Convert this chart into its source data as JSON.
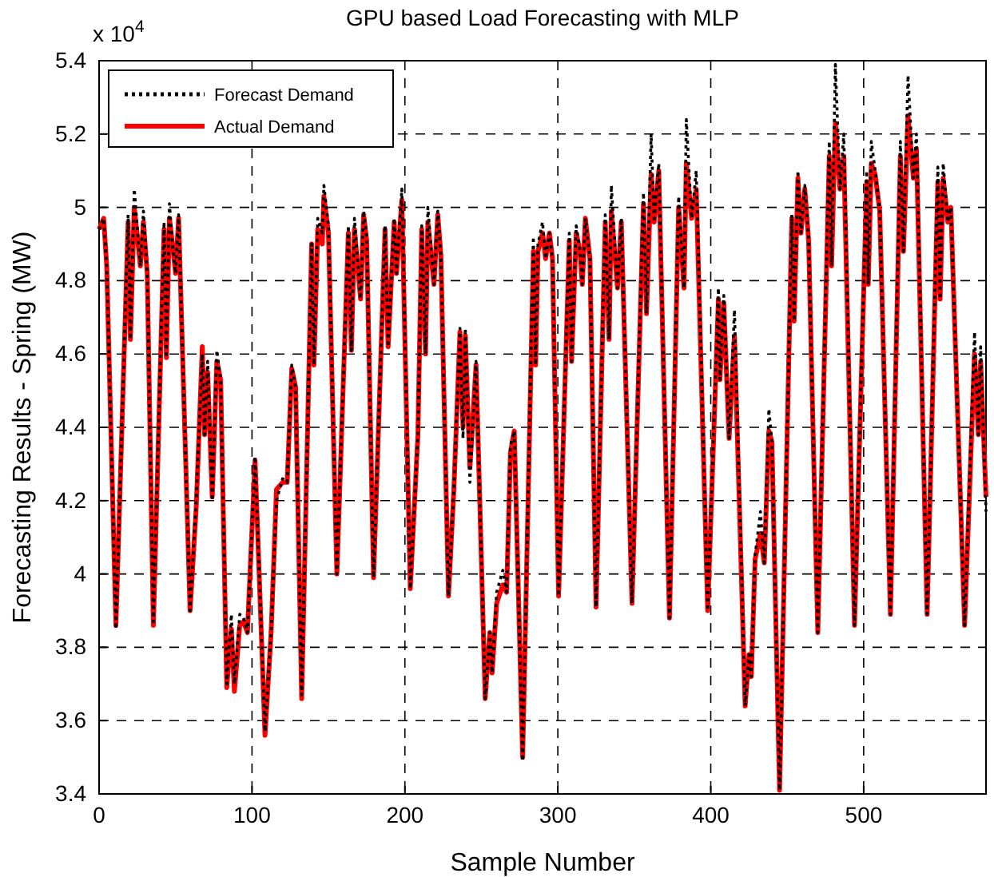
{
  "chart_data": {
    "type": "line",
    "title": "GPU based Load Forecasting with MLP",
    "xlabel": "Sample Number",
    "ylabel": "Forecasting Results - Spring (MW)",
    "annotations": [
      "x 10$^{4}$"
    ],
    "x": [
      0,
      3,
      5,
      11,
      19,
      20.5,
      23,
      27,
      29,
      31.5,
      35.5,
      42.5,
      44,
      46,
      48,
      50,
      52,
      59.5,
      63.5,
      67.5,
      69,
      71,
      74,
      77,
      79.5,
      83.5,
      86.5,
      88.5,
      92,
      94.5,
      97,
      102,
      108.5,
      112.5,
      116,
      120,
      123,
      126,
      128.5,
      132.5,
      139,
      140.5,
      143,
      146,
      147,
      150,
      155.5,
      163,
      165,
      167,
      171,
      173,
      175,
      179.5,
      187,
      189,
      193,
      194.5,
      198,
      203.5,
      208.5,
      211,
      213.5,
      215,
      219,
      221.5,
      223.5,
      228.5,
      232,
      236,
      238,
      239.5,
      242.5,
      246.5,
      252.5,
      255.5,
      257,
      260,
      264,
      266.5,
      269,
      271.5,
      277,
      284,
      285.5,
      287,
      290,
      292,
      294.5,
      296.5,
      300.5,
      307.5,
      309,
      312,
      314.5,
      316,
      318,
      321,
      325,
      331,
      333.5,
      335,
      339,
      341.5,
      348.5,
      356,
      358,
      361,
      363,
      366,
      373,
      379,
      382.5,
      384,
      387.5,
      390.5,
      398,
      405,
      406,
      408.5,
      412,
      415.5,
      422.5,
      425,
      426.5,
      429,
      432.5,
      435,
      438,
      440,
      445,
      453,
      454.5,
      457,
      459,
      461.5,
      464,
      470,
      477.5,
      479,
      481.5,
      484.5,
      487,
      494,
      502,
      503,
      505,
      507.5,
      510.5,
      517.5,
      524,
      526,
      529,
      532.5,
      534.5,
      541.5,
      548.5,
      550,
      552,
      555,
      557,
      566,
      572.5,
      575,
      576.5,
      580
    ],
    "series": [
      {
        "name": "Forecast Demand",
        "color": "#000000",
        "line_style": "dotted",
        "values": [
          4.94,
          4.97,
          4.84,
          3.85,
          4.98,
          4.64,
          5.05,
          4.84,
          4.99,
          4.82,
          3.87,
          4.96,
          4.59,
          5.01,
          4.9,
          4.82,
          4.98,
          3.9,
          4.2,
          4.6,
          4.38,
          4.58,
          4.2,
          4.61,
          4.53,
          3.7,
          3.89,
          3.7,
          3.89,
          3.88,
          3.84,
          4.32,
          3.57,
          3.84,
          4.2,
          4.26,
          4.25,
          4.57,
          4.51,
          3.67,
          4.9,
          4.57,
          4.97,
          4.93,
          5.06,
          4.95,
          4.0,
          4.95,
          4.61,
          4.97,
          4.75,
          4.99,
          4.92,
          3.99,
          4.95,
          4.62,
          4.97,
          4.82,
          5.05,
          3.96,
          4.38,
          4.95,
          4.6,
          5.0,
          4.79,
          4.99,
          4.87,
          3.94,
          4.23,
          4.67,
          4.37,
          4.67,
          4.25,
          4.58,
          3.66,
          3.84,
          3.73,
          3.95,
          4.01,
          3.95,
          4.35,
          4.39,
          3.49,
          4.92,
          4.57,
          4.9,
          4.96,
          4.86,
          4.93,
          4.86,
          3.94,
          4.93,
          4.58,
          4.95,
          4.88,
          4.79,
          4.97,
          4.86,
          3.91,
          4.98,
          4.64,
          5.06,
          4.78,
          4.97,
          3.92,
          5.04,
          4.71,
          5.2,
          4.96,
          5.12,
          3.88,
          5.03,
          4.78,
          5.24,
          4.97,
          5.1,
          3.9,
          4.78,
          4.53,
          4.76,
          4.37,
          4.72,
          3.64,
          3.78,
          3.72,
          4.05,
          4.17,
          4.03,
          4.45,
          4.36,
          3.41,
          4.98,
          4.69,
          5.1,
          4.93,
          5.06,
          4.91,
          3.84,
          5.18,
          4.84,
          5.39,
          5.05,
          5.2,
          3.86,
          5.1,
          4.79,
          5.18,
          5.1,
          4.99,
          3.89,
          5.18,
          4.88,
          5.36,
          5.08,
          5.2,
          3.89,
          5.11,
          4.75,
          5.12,
          4.96,
          5.0,
          3.86,
          4.66,
          4.38,
          4.62,
          4.17
        ]
      },
      {
        "name": "Actual Demand",
        "color": "#ff0000",
        "line_style": "solid",
        "values": [
          4.94,
          4.97,
          4.84,
          3.86,
          4.96,
          4.64,
          5.0,
          4.84,
          4.96,
          4.82,
          3.86,
          4.94,
          4.59,
          4.97,
          4.9,
          4.82,
          4.97,
          3.9,
          4.18,
          4.62,
          4.38,
          4.55,
          4.21,
          4.58,
          4.53,
          3.69,
          3.85,
          3.68,
          3.86,
          3.87,
          3.84,
          4.31,
          3.56,
          3.84,
          4.23,
          4.25,
          4.25,
          4.56,
          4.51,
          3.66,
          4.9,
          4.57,
          4.94,
          4.9,
          5.03,
          4.93,
          4.0,
          4.93,
          4.61,
          4.94,
          4.75,
          4.98,
          4.91,
          3.99,
          4.94,
          4.62,
          4.96,
          4.82,
          5.02,
          3.96,
          4.38,
          4.94,
          4.6,
          4.96,
          4.79,
          4.98,
          4.87,
          3.94,
          4.23,
          4.66,
          4.4,
          4.65,
          4.29,
          4.57,
          3.66,
          3.84,
          3.73,
          3.92,
          3.97,
          3.95,
          4.33,
          4.39,
          3.5,
          4.88,
          4.57,
          4.88,
          4.93,
          4.86,
          4.93,
          4.86,
          3.94,
          4.91,
          4.58,
          4.93,
          4.88,
          4.79,
          4.97,
          4.86,
          3.91,
          4.96,
          4.64,
          4.99,
          4.78,
          4.96,
          3.92,
          5.01,
          4.71,
          5.09,
          4.96,
          5.1,
          3.88,
          5.0,
          4.78,
          5.12,
          4.97,
          5.05,
          3.9,
          4.75,
          4.53,
          4.74,
          4.37,
          4.65,
          3.64,
          3.78,
          3.72,
          4.04,
          4.11,
          4.03,
          4.39,
          4.36,
          3.41,
          4.97,
          4.69,
          5.08,
          4.93,
          5.05,
          4.91,
          3.84,
          5.14,
          4.84,
          5.23,
          5.05,
          5.14,
          3.86,
          5.07,
          4.79,
          5.12,
          5.09,
          4.99,
          3.89,
          5.14,
          4.88,
          5.25,
          5.08,
          5.16,
          3.89,
          5.07,
          4.75,
          5.08,
          4.96,
          5.0,
          3.86,
          4.6,
          4.38,
          4.58,
          4.21
        ]
      }
    ],
    "xlim": [
      0,
      580
    ],
    "xticks": [
      0,
      100,
      200,
      300,
      400,
      500
    ],
    "ylim": [
      3.4,
      5.4
    ],
    "yticks": [
      3.4,
      3.6,
      3.8,
      4,
      4.2,
      4.4,
      4.6,
      4.8,
      5,
      5.2,
      5.4
    ],
    "grid": true,
    "legend": "top left"
  }
}
